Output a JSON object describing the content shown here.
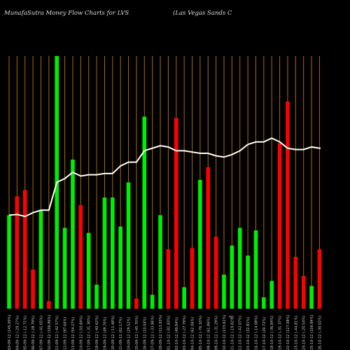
{
  "header": {
    "title_left": "MunafaSutra  Money Flow  Charts for LVS",
    "title_right": "(Las Vegas Sands C"
  },
  "chart_data": {
    "type": "bar",
    "title": "MunafaSutra  Money Flow  Charts for LVS",
    "subtitle": "(Las Vegas Sands C",
    "colors": {
      "up": "#00ee00",
      "down": "#ff0000",
      "grid": "#b36a00",
      "line": "#ffffff"
    },
    "categories": [
      "03-09-12 (145.00%)",
      "04-09-12 (-29.27%)",
      "05-09-12 (-12.71%)",
      "06-09-12 (-28.79%)",
      "07-09-12 (-41.05%)",
      "10-09-12 (106.86%)",
      "11-09-12 (-42.57%)",
      "12-09-12 (97.66%)",
      "13-09-12 (54.27%)",
      "14-09-12 (-50.84%)",
      "17-09-12 (-31.30%)",
      "18-09-12 (-40.62%)",
      "19-09-12 (49.70%)",
      "20-09-12 (-11.48%)",
      "21-09-12 (62.17%)",
      "24-09-12 (29.52%)",
      "25-09-12 (-45.70%)",
      "26-09-12 (10.04%)",
      "27-09-12 (-33.86%)",
      "28-09-12 (113.93%)",
      "01-10-12 (-81.83%)",
      "02-10-12 (49.84%)",
      "03-10-12 (-27.79%)",
      "04-10-12 (62.06%)",
      "05-10-12 (-76.10%)",
      "08-10-12 (61.86%)",
      "09-10-12 (-31.29%)",
      "10-10-12 (133.61%)",
      "11-10-12 (-19.82%)",
      "12-10-12 (-42.07%)",
      "15-10-12 (32.81%)",
      "16-10-12 (-14.08%)",
      "17-10-12 (20.72%)",
      "18-10-12 (-36.84%)",
      "19-10-12 (-31.37%)",
      "22-10-12 (127.08%)",
      "23-10-12 (-44.81%)",
      "24-10-12 (-20.54%)",
      "25-10-12 (100.84%)",
      "26-10-12 (-30.02%)"
    ],
    "extra_label": "%",
    "bars": [
      {
        "h": 0.37,
        "c": "up"
      },
      {
        "h": 0.445,
        "c": "down"
      },
      {
        "h": 0.47,
        "c": "down"
      },
      {
        "h": 0.155,
        "c": "down"
      },
      {
        "h": 0.39,
        "c": "up"
      },
      {
        "h": 0.03,
        "c": "down"
      },
      {
        "h": 1.0,
        "c": "up"
      },
      {
        "h": 0.32,
        "c": "up"
      },
      {
        "h": 0.59,
        "c": "up"
      },
      {
        "h": 0.41,
        "c": "down"
      },
      {
        "h": 0.3,
        "c": "up"
      },
      {
        "h": 0.095,
        "c": "up"
      },
      {
        "h": 0.44,
        "c": "up"
      },
      {
        "h": 0.44,
        "c": "up"
      },
      {
        "h": 0.325,
        "c": "up"
      },
      {
        "h": 0.5,
        "c": "up"
      },
      {
        "h": 0.04,
        "c": "down"
      },
      {
        "h": 0.76,
        "c": "up"
      },
      {
        "h": 0.055,
        "c": "up"
      },
      {
        "h": 0.37,
        "c": "up"
      },
      {
        "h": 0.235,
        "c": "down"
      },
      {
        "h": 0.755,
        "c": "down"
      },
      {
        "h": 0.085,
        "c": "up"
      },
      {
        "h": 0.24,
        "c": "down"
      },
      {
        "h": 0.51,
        "c": "up"
      },
      {
        "h": 0.56,
        "c": "down"
      },
      {
        "h": 0.285,
        "c": "down"
      },
      {
        "h": 0.135,
        "c": "up"
      },
      {
        "h": 0.25,
        "c": "up"
      },
      {
        "h": 0.32,
        "c": "up"
      },
      {
        "h": 0.21,
        "c": "up"
      },
      {
        "h": 0.31,
        "c": "up"
      },
      {
        "h": 0.045,
        "c": "up"
      },
      {
        "h": 0.11,
        "c": "up"
      },
      {
        "h": 0.655,
        "c": "down"
      },
      {
        "h": 0.82,
        "c": "down"
      },
      {
        "h": 0.205,
        "c": "down"
      },
      {
        "h": 0.13,
        "c": "down"
      },
      {
        "h": 0.09,
        "c": "up"
      },
      {
        "h": 0.235,
        "c": "down"
      }
    ],
    "line": [
      0.37,
      0.373,
      0.365,
      0.38,
      0.39,
      0.39,
      0.5,
      0.515,
      0.54,
      0.525,
      0.53,
      0.53,
      0.535,
      0.535,
      0.565,
      0.58,
      0.58,
      0.625,
      0.635,
      0.645,
      0.64,
      0.625,
      0.625,
      0.62,
      0.615,
      0.615,
      0.605,
      0.6,
      0.61,
      0.625,
      0.65,
      0.66,
      0.66,
      0.675,
      0.66,
      0.635,
      0.63,
      0.63,
      0.64,
      0.635
    ],
    "line_last": 0.635
  }
}
